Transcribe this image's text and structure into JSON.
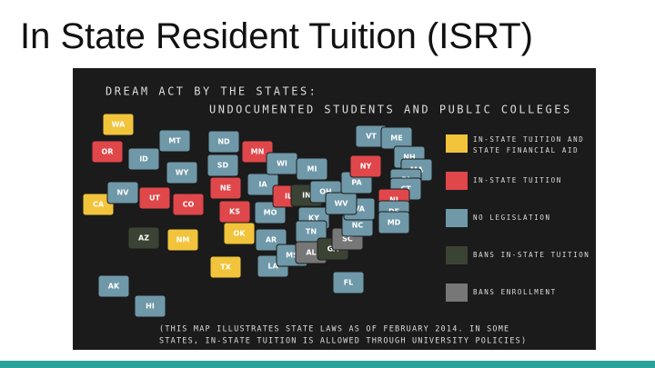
{
  "title": "In State Resident Tuition (ISRT)",
  "map": {
    "heading": [
      "DREAM ACT BY THE STATES:",
      "UNDOCUMENTED STUDENTS AND PUBLIC COLLEGES"
    ],
    "legend": [
      {
        "lines": [
          "IN-STATE TUITION AND",
          "STATE FINANCIAL AID"
        ],
        "color": "#f2c43c"
      },
      {
        "lines": [
          "IN-STATE TUITION"
        ],
        "color": "#e0474a"
      },
      {
        "lines": [
          "NO LEGISLATION"
        ],
        "color": "#6f98a8"
      },
      {
        "lines": [
          "BANS IN-STATE TUITION"
        ],
        "color": "#3b4434"
      },
      {
        "lines": [
          "BANS ENROLLMENT"
        ],
        "color": "#777777"
      }
    ],
    "caption": [
      "(THIS MAP ILLUSTRATES STATE LAWS AS OF FEBRUARY 2014. IN SOME",
      "STATES, IN-STATE TUITION IS ALLOWED THROUGH UNIVERSITY POLICIES)"
    ],
    "states": [
      {
        "label": "WA",
        "color": "#f2c43c"
      },
      {
        "label": "OR",
        "color": "#e0474a"
      },
      {
        "label": "CA",
        "color": "#f2c43c"
      },
      {
        "label": "NV",
        "color": "#6f98a8"
      },
      {
        "label": "ID",
        "color": "#6f98a8"
      },
      {
        "label": "MT",
        "color": "#6f98a8"
      },
      {
        "label": "WY",
        "color": "#6f98a8"
      },
      {
        "label": "UT",
        "color": "#e0474a"
      },
      {
        "label": "CO",
        "color": "#e0474a"
      },
      {
        "label": "AZ",
        "color": "#3b4434"
      },
      {
        "label": "NM",
        "color": "#f2c43c"
      },
      {
        "label": "ND",
        "color": "#6f98a8"
      },
      {
        "label": "SD",
        "color": "#6f98a8"
      },
      {
        "label": "NE",
        "color": "#e0474a"
      },
      {
        "label": "KS",
        "color": "#e0474a"
      },
      {
        "label": "OK",
        "color": "#f2c43c"
      },
      {
        "label": "TX",
        "color": "#f2c43c"
      },
      {
        "label": "MN",
        "color": "#e0474a"
      },
      {
        "label": "IA",
        "color": "#6f98a8"
      },
      {
        "label": "MO",
        "color": "#6f98a8"
      },
      {
        "label": "AR",
        "color": "#6f98a8"
      },
      {
        "label": "LA",
        "color": "#6f98a8"
      },
      {
        "label": "WI",
        "color": "#6f98a8"
      },
      {
        "label": "IL",
        "color": "#e0474a"
      },
      {
        "label": "MI",
        "color": "#6f98a8"
      },
      {
        "label": "IN",
        "color": "#3b4434"
      },
      {
        "label": "OH",
        "color": "#6f98a8"
      },
      {
        "label": "KY",
        "color": "#6f98a8"
      },
      {
        "label": "TN",
        "color": "#6f98a8"
      },
      {
        "label": "MS",
        "color": "#6f98a8"
      },
      {
        "label": "AL",
        "color": "#777777"
      },
      {
        "label": "GA",
        "color": "#3b4434"
      },
      {
        "label": "FL",
        "color": "#6f98a8"
      },
      {
        "label": "SC",
        "color": "#777777"
      },
      {
        "label": "NC",
        "color": "#6f98a8"
      },
      {
        "label": "VA",
        "color": "#6f98a8"
      },
      {
        "label": "WV",
        "color": "#6f98a8"
      },
      {
        "label": "PA",
        "color": "#6f98a8"
      },
      {
        "label": "NY",
        "color": "#e0474a"
      },
      {
        "label": "VT",
        "color": "#6f98a8"
      },
      {
        "label": "ME",
        "color": "#6f98a8"
      },
      {
        "label": "NH",
        "color": "#6f98a8"
      },
      {
        "label": "MA",
        "color": "#6f98a8"
      },
      {
        "label": "RI",
        "color": "#6f98a8"
      },
      {
        "label": "CT",
        "color": "#6f98a8"
      },
      {
        "label": "NJ",
        "color": "#e0474a"
      },
      {
        "label": "DE",
        "color": "#6f98a8"
      },
      {
        "label": "MD",
        "color": "#6f98a8"
      },
      {
        "label": "AK",
        "color": "#6f98a8"
      },
      {
        "label": "HI",
        "color": "#6f98a8"
      }
    ]
  }
}
